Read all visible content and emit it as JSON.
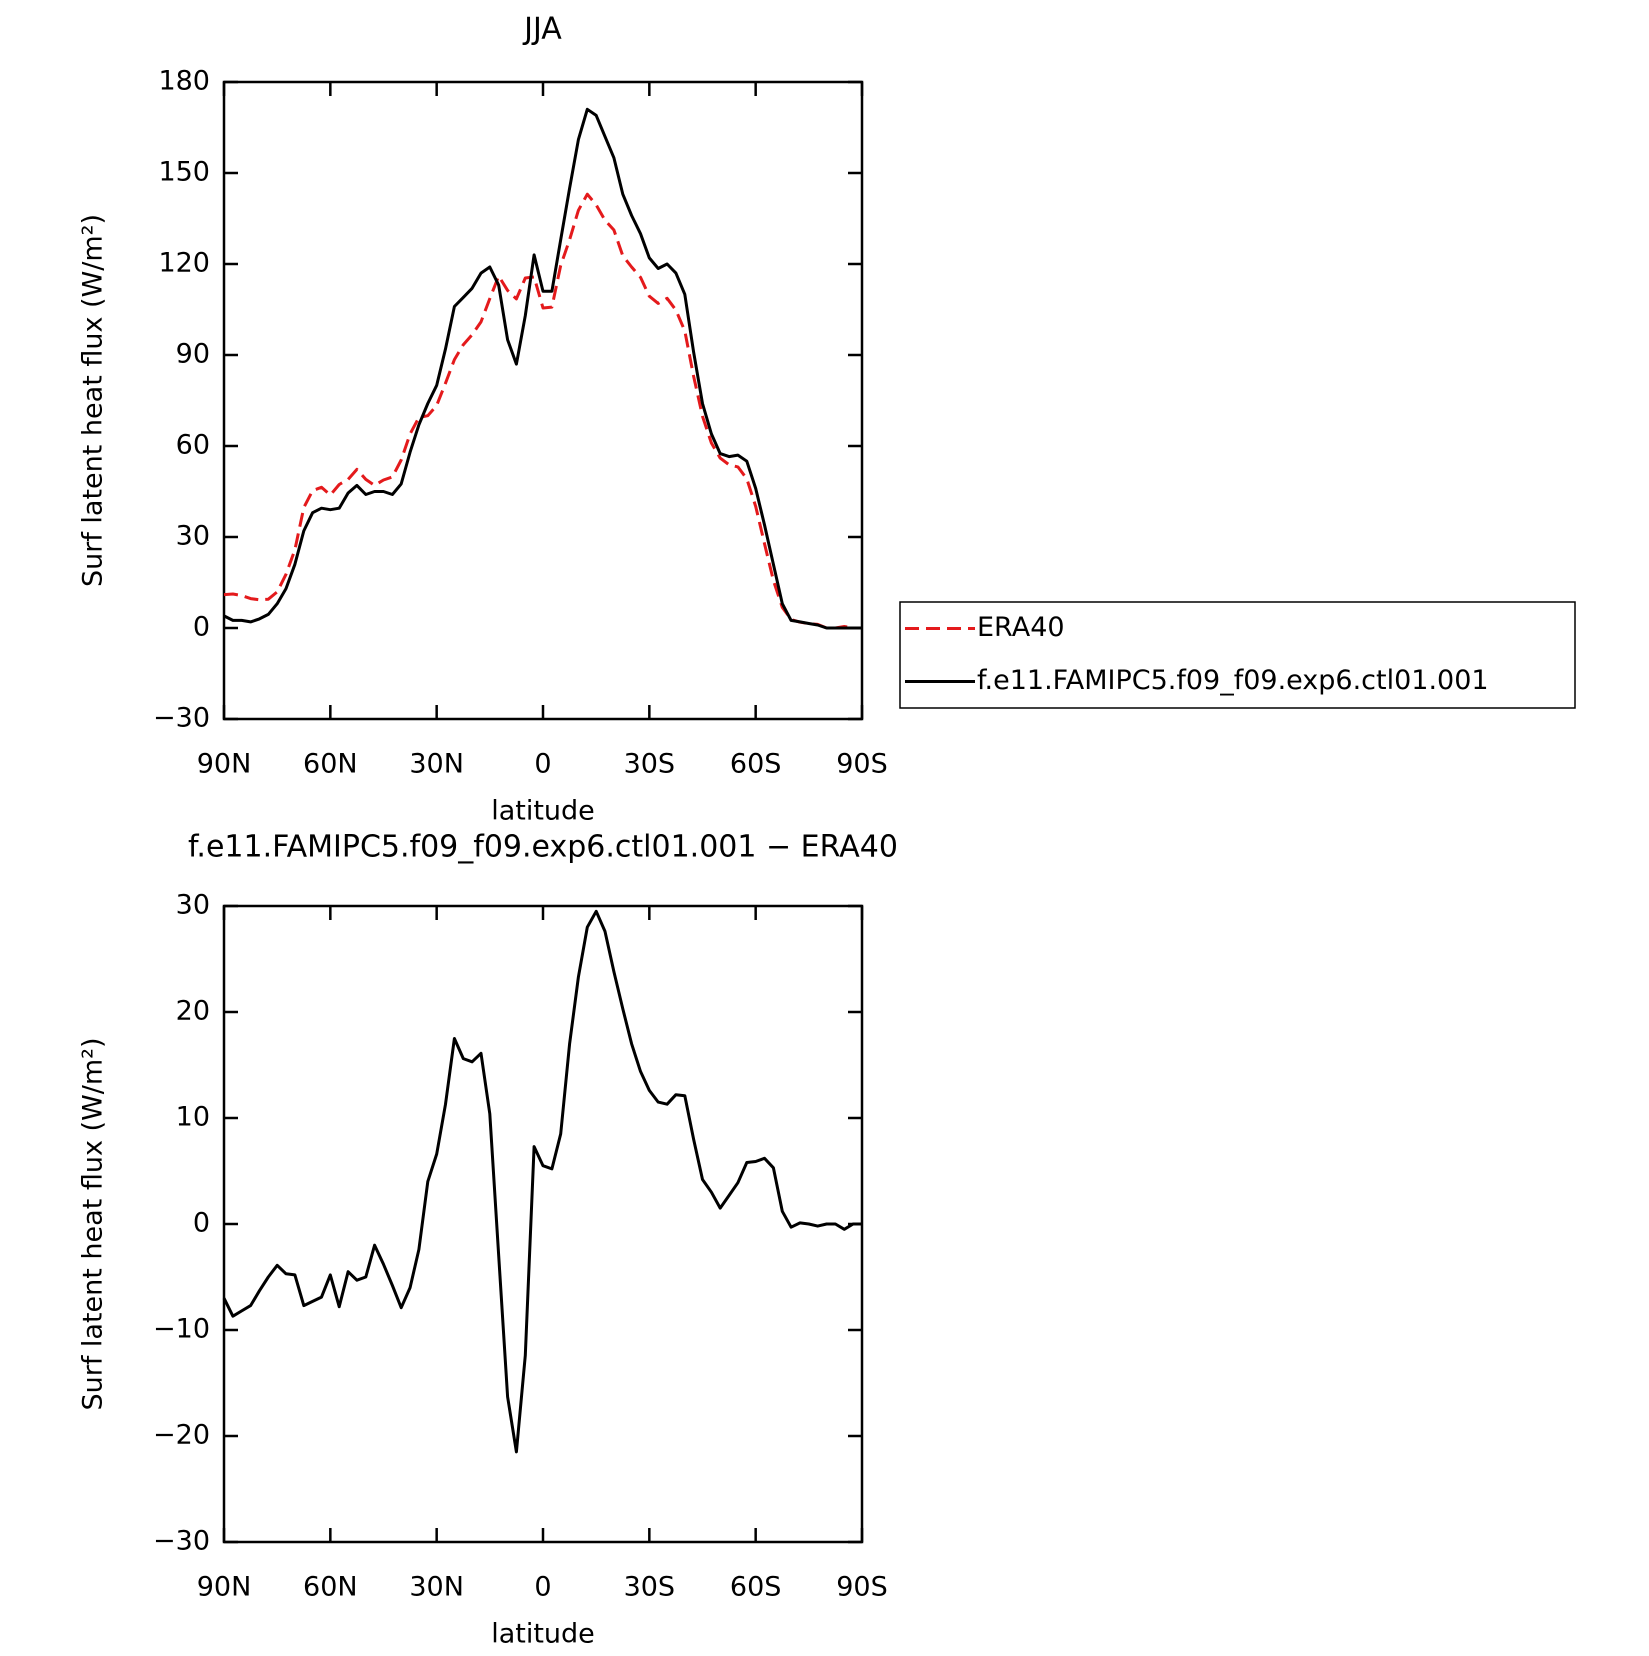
{
  "chart_data": [
    {
      "type": "line",
      "title": "JJA",
      "xlabel": "latitude",
      "ylabel": "Surf latent heat flux (W/m²)",
      "x": [
        90,
        87.5,
        85,
        82.5,
        80,
        77.5,
        75,
        72.5,
        70,
        67.5,
        65,
        62.5,
        60,
        57.5,
        55,
        52.5,
        50,
        47.5,
        45,
        42.5,
        40,
        37.5,
        35,
        32.5,
        30,
        27.5,
        25,
        22.5,
        20,
        17.5,
        15,
        12.5,
        10,
        7.5,
        5,
        2.5,
        0,
        -2.5,
        -5,
        -7.5,
        -10,
        -12.5,
        -15,
        -17.5,
        -20,
        -22.5,
        -25,
        -27.5,
        -30,
        -32.5,
        -35,
        -37.5,
        -40,
        -42.5,
        -45,
        -47.5,
        -50,
        -52.5,
        -55,
        -57.5,
        -60,
        -62.5,
        -65,
        -67.5,
        -70,
        -72.5,
        -75,
        -77.5,
        -80,
        -82.5,
        -85,
        -87.5,
        -90
      ],
      "series": [
        {
          "name": "ERA40",
          "color": "#e41a1c",
          "dash": true,
          "values": [
            11,
            11.2,
            10.7,
            9.7,
            9.3,
            9.5,
            11.9,
            17.7,
            25.8,
            39.7,
            45.3,
            46.4,
            43.8,
            47.3,
            49,
            52.3,
            49,
            47,
            48.8,
            49.8,
            55.4,
            64,
            69.4,
            70,
            73.4,
            80.7,
            88.5,
            93.4,
            96.7,
            100.9,
            108.6,
            116,
            111.3,
            108.5,
            115.4,
            115.7,
            105.5,
            105.8,
            119.5,
            128,
            137.7,
            143,
            139.5,
            134.4,
            131.2,
            122.7,
            119,
            115.6,
            109.4,
            107,
            108.7,
            104.8,
            97.9,
            83,
            69.8,
            61,
            56,
            53.8,
            53.1,
            49.2,
            40.1,
            27.8,
            15.7,
            6.8,
            2.8,
            1.9,
            1.5,
            1.2,
            0,
            0,
            0.5,
            0,
            0
          ]
        },
        {
          "name": "f.e11.FAMIPC5.f09_f09.exp6.ctl01.001",
          "color": "#000000",
          "dash": false,
          "values": [
            4,
            2.5,
            2.5,
            2,
            3,
            4.5,
            8,
            13,
            21,
            32,
            38,
            39.5,
            39,
            39.5,
            44.5,
            47,
            44,
            45,
            45,
            44,
            47.5,
            58,
            67,
            74,
            80,
            92,
            106,
            109,
            112,
            117,
            119,
            113,
            95,
            87,
            103,
            123,
            111,
            111,
            128,
            145,
            161,
            171,
            169,
            162,
            155,
            143,
            136,
            130,
            122,
            118.5,
            120,
            117,
            110,
            91,
            74,
            64,
            57.5,
            56.5,
            57,
            55,
            46,
            34,
            21,
            8,
            2.5,
            2,
            1.5,
            1,
            0,
            0,
            0,
            0,
            0
          ]
        }
      ],
      "xlim": [
        90,
        -90
      ],
      "xticks": [
        {
          "value": 90,
          "label": "90N"
        },
        {
          "value": 60,
          "label": "60N"
        },
        {
          "value": 30,
          "label": "30N"
        },
        0,
        {
          "value": -30,
          "label": "30S"
        },
        {
          "value": -60,
          "label": "60S"
        },
        {
          "value": -90,
          "label": "90S"
        }
      ],
      "ylim": [
        -30,
        180
      ],
      "yticks": [
        {
          "value": -30,
          "label": "−30"
        },
        0,
        30,
        60,
        90,
        120,
        150,
        180
      ],
      "legend": "right"
    },
    {
      "type": "line",
      "title": "f.e11.FAMIPC5.f09_f09.exp6.ctl01.001 − ERA40",
      "xlabel": "latitude",
      "ylabel": "Surf latent heat flux (W/m²)",
      "x": [
        90,
        87.5,
        85,
        82.5,
        80,
        77.5,
        75,
        72.5,
        70,
        67.5,
        65,
        62.5,
        60,
        57.5,
        55,
        52.5,
        50,
        47.5,
        45,
        42.5,
        40,
        37.5,
        35,
        32.5,
        30,
        27.5,
        25,
        22.5,
        20,
        17.5,
        15,
        12.5,
        10,
        7.5,
        5,
        2.5,
        0,
        -2.5,
        -5,
        -7.5,
        -10,
        -12.5,
        -15,
        -17.5,
        -20,
        -22.5,
        -25,
        -27.5,
        -30,
        -32.5,
        -35,
        -37.5,
        -40,
        -42.5,
        -45,
        -47.5,
        -50,
        -52.5,
        -55,
        -57.5,
        -60,
        -62.5,
        -65,
        -67.5,
        -70,
        -72.5,
        -75,
        -77.5,
        -80,
        -82.5,
        -85,
        -87.5,
        -90
      ],
      "series": [
        {
          "color": "#000000",
          "dash": false,
          "values": [
            -7,
            -8.7,
            -8.2,
            -7.7,
            -6.3,
            -5,
            -3.9,
            -4.7,
            -4.8,
            -7.7,
            -7.3,
            -6.9,
            -4.8,
            -7.8,
            -4.5,
            -5.3,
            -5,
            -2,
            -3.8,
            -5.8,
            -7.9,
            -6,
            -2.4,
            4,
            6.6,
            11.3,
            17.5,
            15.6,
            15.3,
            16.1,
            10.4,
            -3,
            -16.3,
            -21.5,
            -12.4,
            7.3,
            5.5,
            5.2,
            8.5,
            17,
            23.3,
            28,
            29.5,
            27.6,
            23.8,
            20.3,
            17,
            14.4,
            12.6,
            11.5,
            11.3,
            12.2,
            12.1,
            8,
            4.2,
            3,
            1.5,
            2.7,
            3.9,
            5.8,
            5.9,
            6.2,
            5.3,
            1.2,
            -0.3,
            0.1,
            0,
            -0.2,
            0,
            0,
            -0.5,
            0,
            0
          ]
        }
      ],
      "xlim": [
        90,
        -90
      ],
      "xticks": [
        {
          "value": 90,
          "label": "90N"
        },
        {
          "value": 60,
          "label": "60N"
        },
        {
          "value": 30,
          "label": "30N"
        },
        0,
        {
          "value": -30,
          "label": "30S"
        },
        {
          "value": -60,
          "label": "60S"
        },
        {
          "value": -90,
          "label": "90S"
        }
      ],
      "ylim": [
        -30,
        30
      ],
      "yticks": [
        {
          "value": -30,
          "label": "−30"
        },
        {
          "value": -20,
          "label": "−20"
        },
        {
          "value": -10,
          "label": "−10"
        },
        0,
        10,
        20,
        30
      ]
    }
  ]
}
